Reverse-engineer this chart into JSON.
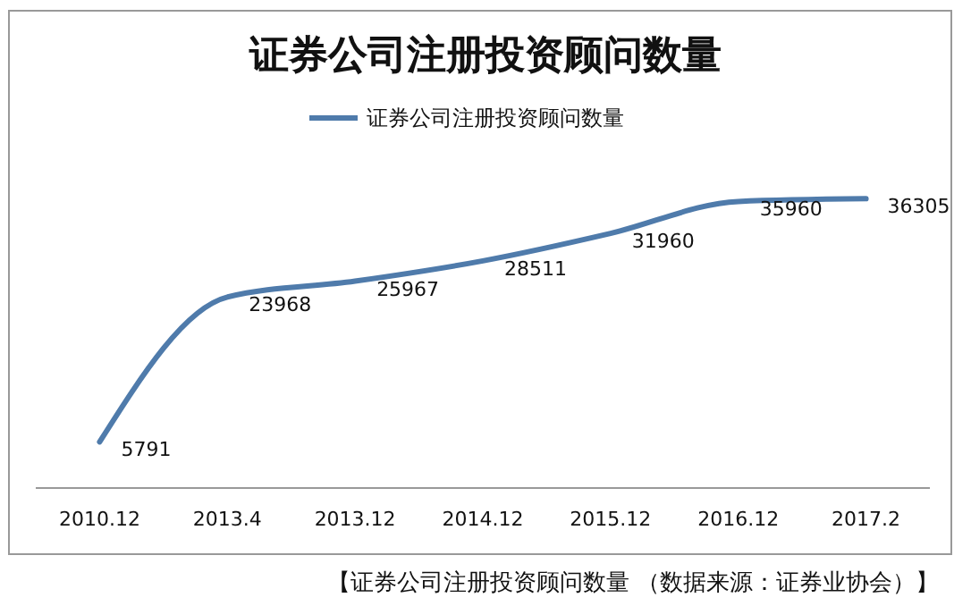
{
  "chart_data": {
    "type": "line",
    "title": "证券公司注册投资顾问数量",
    "categories": [
      "2010.12",
      "2013.4",
      "2013.12",
      "2014.12",
      "2015.12",
      "2016.12",
      "2017.2"
    ],
    "series": [
      {
        "name": "证券公司注册投资顾问数量",
        "color": "#4f7bab",
        "values": [
          5791,
          23968,
          25967,
          28511,
          31960,
          35960,
          36305
        ]
      }
    ],
    "data_labels": true,
    "legend": "top",
    "grid": false,
    "marker": "none",
    "line_style": "solid",
    "annotations": [
      "【证券公司注册投资顾问数量 （数据来源：证券业协会）】"
    ]
  }
}
